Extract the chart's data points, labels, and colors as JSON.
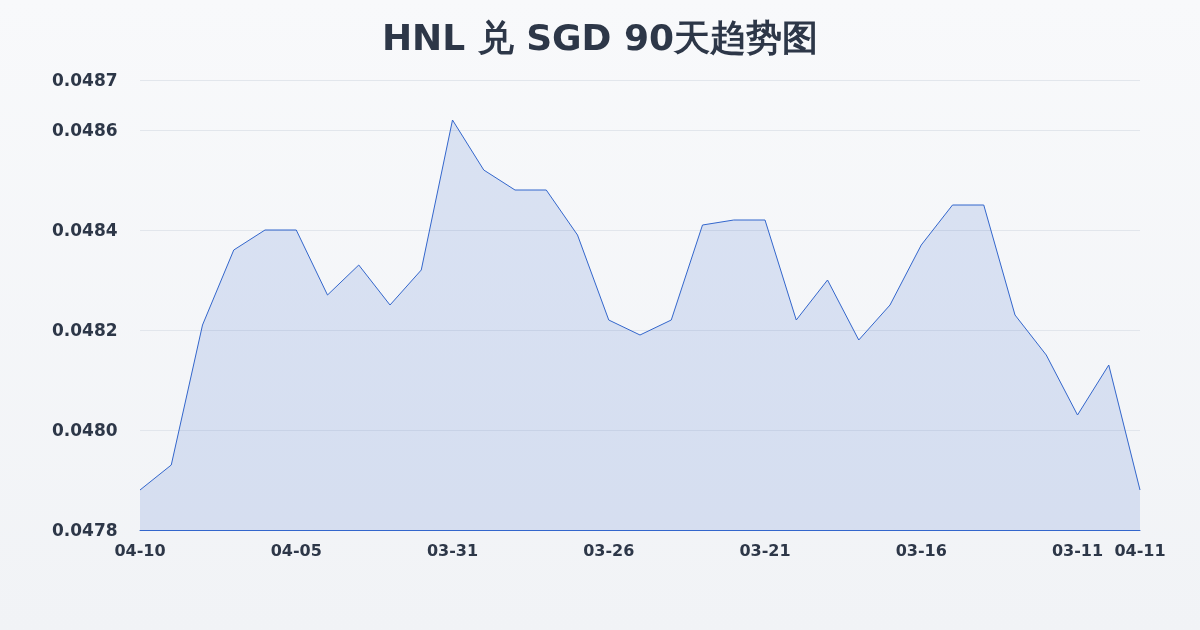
{
  "chart_data": {
    "type": "area",
    "title": "HNL 兑 SGD 90天趋势图",
    "categories": [
      "04-10",
      null,
      null,
      null,
      null,
      "04-05",
      null,
      null,
      null,
      null,
      "03-31",
      null,
      null,
      null,
      null,
      "03-26",
      null,
      null,
      null,
      null,
      "03-21",
      null,
      null,
      null,
      null,
      "03-16",
      null,
      null,
      null,
      null,
      "03-11",
      null,
      "04-11"
    ],
    "series": [
      {
        "color": "#3366cc",
        "values": [
          0.04788,
          0.04793,
          0.04821,
          0.04836,
          0.0484,
          0.0484,
          0.04827,
          0.04833,
          0.04825,
          0.04832,
          0.04862,
          0.04852,
          0.04848,
          0.04848,
          0.04839,
          0.04822,
          0.04819,
          0.04822,
          0.04841,
          0.04842,
          0.04842,
          0.04822,
          0.0483,
          0.04818,
          0.04825,
          0.04837,
          0.04845,
          0.04845,
          0.04823,
          0.04815,
          0.04803,
          0.04813,
          0.04788
        ]
      }
    ],
    "ylim": [
      0.0478,
      0.0487
    ],
    "yticks": [
      {
        "value": 0.0478,
        "label": "0.0478"
      },
      {
        "value": 0.048,
        "label": "0.0480"
      },
      {
        "value": 0.0482,
        "label": "0.0482"
      },
      {
        "value": 0.0484,
        "label": "0.0484"
      },
      {
        "value": 0.0486,
        "label": "0.0486"
      },
      {
        "value": 0.0487,
        "label": "0.0487"
      }
    ],
    "grid": "y",
    "marker": "none",
    "line_style": "solid"
  }
}
